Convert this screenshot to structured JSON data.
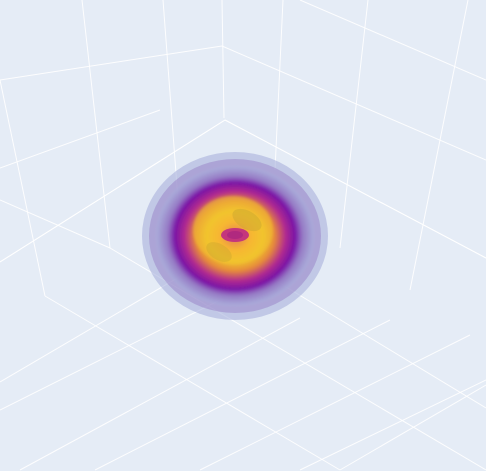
{
  "chart_data": {
    "type": "3d-surface",
    "description_shape": "toroidal blob",
    "colorscale": "plasma",
    "colors": [
      "#0d0887",
      "#6a00a8",
      "#b12a90",
      "#e16462",
      "#fca636",
      "#f0f921"
    ],
    "background_color": "#e5ecf6",
    "gridline_color": "#ffffff",
    "grid": true,
    "title": "",
    "axes": {
      "x": {
        "title": "",
        "tick_labels": []
      },
      "y": {
        "title": "",
        "tick_labels": []
      },
      "z": {
        "title": "",
        "tick_labels": []
      }
    },
    "legend": false,
    "colorbar": false
  }
}
